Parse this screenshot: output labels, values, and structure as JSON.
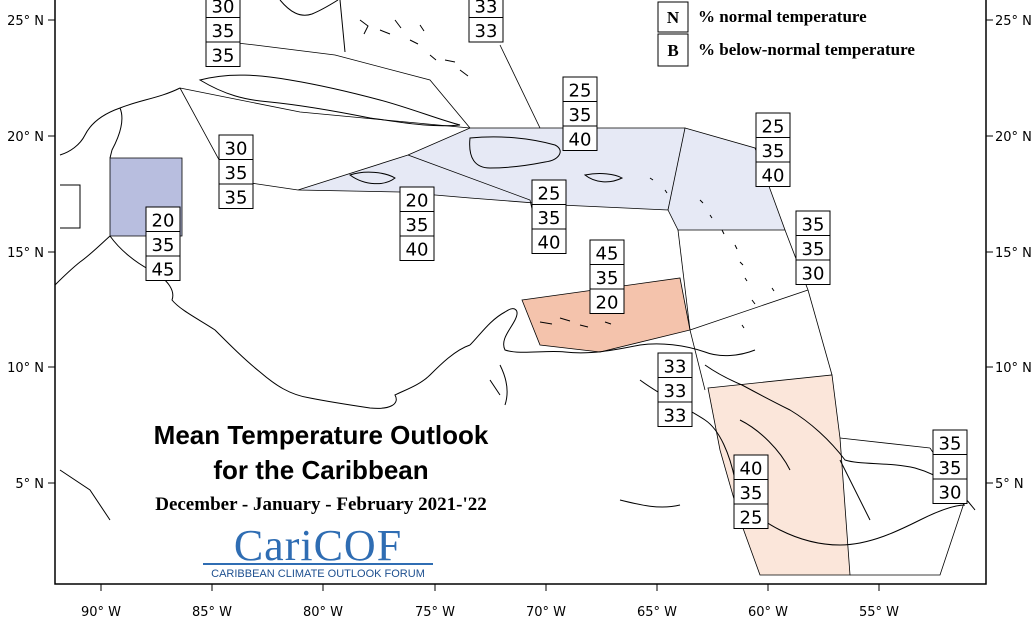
{
  "title": {
    "line1": "Mean Temperature Outlook",
    "line2": "for the Caribbean",
    "period": "December - January - February 2021-'22"
  },
  "logo": {
    "name": "CariCOF",
    "tagline": "CARIBBEAN CLIMATE OUTLOOK FORUM"
  },
  "legend": [
    {
      "letter": "N",
      "text": "% normal temperature"
    },
    {
      "letter": "B",
      "text": "% below-normal temperature"
    }
  ],
  "axes": {
    "x_ticks": [
      "90° W",
      "85° W",
      "80° W",
      "75° W",
      "70° W",
      "65° W",
      "60° W",
      "55° W"
    ],
    "y_ticks": [
      "25° N",
      "20° N",
      "15° N",
      "10° N",
      "5° N"
    ]
  },
  "colors": {
    "below_normal_region": "#b8bedf",
    "light_below_region": "#e6e9f5",
    "above_normal_region": "#f4c3ac",
    "light_above_region": "#fbe6da",
    "coast": "#000000"
  },
  "probability_boxes": [
    {
      "values": [
        "30",
        "35",
        "35"
      ]
    },
    {
      "values": [
        "33",
        "33"
      ]
    },
    {
      "values": [
        "25",
        "35",
        "40"
      ]
    },
    {
      "values": [
        "30",
        "35",
        "35"
      ]
    },
    {
      "values": [
        "25",
        "35",
        "40"
      ]
    },
    {
      "values": [
        "20",
        "35",
        "45"
      ]
    },
    {
      "values": [
        "20",
        "35",
        "40"
      ]
    },
    {
      "values": [
        "25",
        "35",
        "40"
      ]
    },
    {
      "values": [
        "35",
        "35",
        "30"
      ]
    },
    {
      "values": [
        "45",
        "35",
        "20"
      ]
    },
    {
      "values": [
        "33",
        "33",
        "33"
      ]
    },
    {
      "values": [
        "40",
        "35",
        "25"
      ]
    },
    {
      "values": [
        "35",
        "35",
        "30"
      ]
    }
  ]
}
